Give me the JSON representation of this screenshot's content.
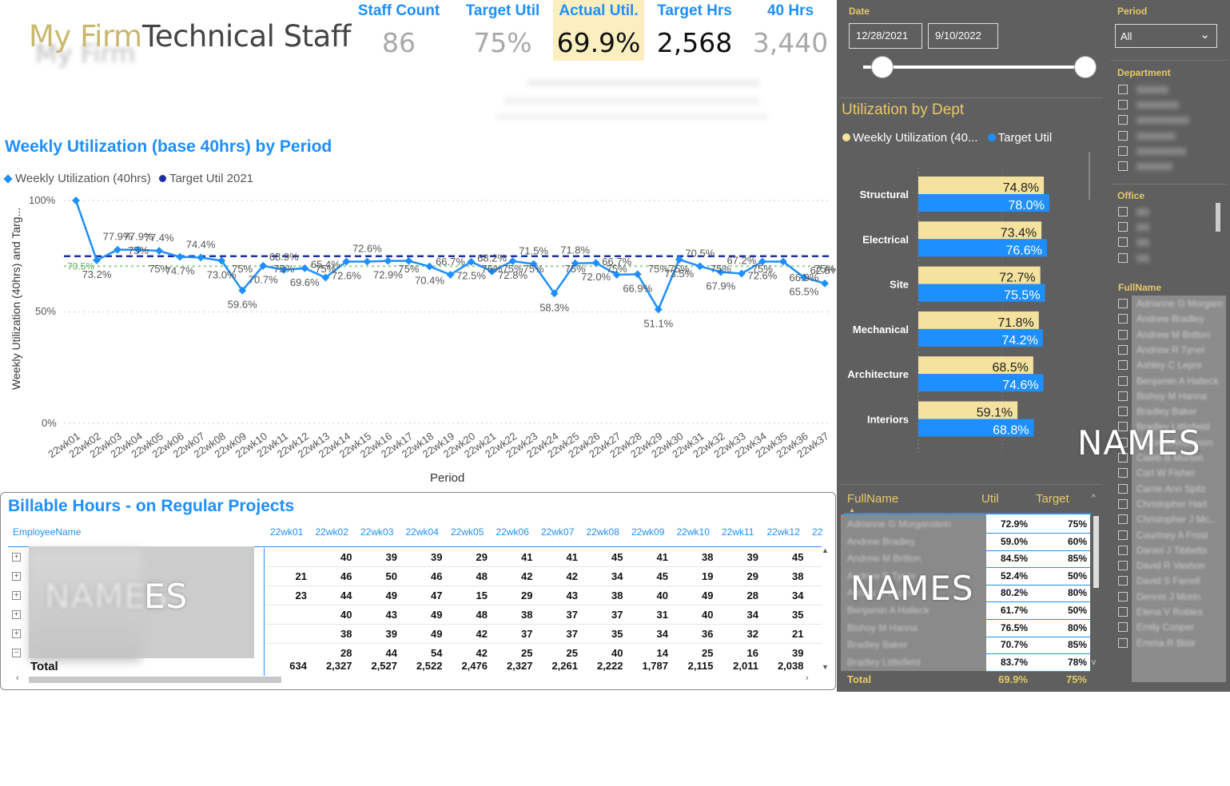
{
  "header": {
    "firm": "My Firm",
    "title": "Technical Staff"
  },
  "kpis": [
    {
      "label": "Staff Count",
      "value": "86"
    },
    {
      "label": "Target Util",
      "value": "75%"
    },
    {
      "label": "Actual Util.",
      "value": "69.9%"
    },
    {
      "label": "Target Hrs",
      "value": "2,568"
    },
    {
      "label": "40 Hrs",
      "value": "3,440"
    }
  ],
  "weekly_chart": {
    "title": "Weekly Utilization (base 40hrs) by Period",
    "legend": [
      "Weekly Utilization (40hrs)",
      "Target Util 2021"
    ],
    "ylabel": "Weekly Utilization (40hrs) and Targ...",
    "xlabel": "Period",
    "yticks": [
      "100%",
      "50%",
      "0%"
    ],
    "avg_label": "70.5%"
  },
  "chart_data": {
    "type": "line",
    "x": [
      "22wk01",
      "22wk02",
      "22wk03",
      "22wk04",
      "22wk05",
      "22wk06",
      "22wk07",
      "22wk08",
      "22wk09",
      "22wk10",
      "22wk11",
      "22wk12",
      "22wk13",
      "22wk14",
      "22wk15",
      "22wk16",
      "22wk17",
      "22wk18",
      "22wk19",
      "22wk20",
      "22wk21",
      "22wk22",
      "22wk23",
      "22wk24",
      "22wk25",
      "22wk26",
      "22wk27",
      "22wk28",
      "22wk29",
      "22wk30",
      "22wk31",
      "22wk32",
      "22wk33",
      "22wk34",
      "22wk35",
      "22wk36",
      "22wk37"
    ],
    "series": [
      {
        "name": "Weekly Utilization (40hrs)",
        "values": [
          100,
          73.2,
          77.9,
          77.9,
          77.4,
          74.7,
          74.4,
          73.0,
          59.6,
          70.7,
          68.9,
          69.6,
          65.4,
          72.6,
          72.6,
          72.9,
          72.9,
          70.4,
          66.7,
          72.5,
          68.2,
          72.8,
          71.5,
          58.3,
          71.8,
          72.0,
          66.7,
          66.9,
          51.1,
          73.5,
          70.5,
          67.9,
          67.2,
          72.6,
          72.6,
          65.5,
          62.8
        ],
        "labels": [
          "",
          "73.2%",
          "77.9%",
          "77.9%",
          "77.4%",
          "74.7%",
          "74.4%",
          "73.0%",
          "59.6%",
          "70.7%",
          "68.9%",
          "69.6%",
          "65.4%",
          "72.6%",
          "72.6%",
          "72.9%",
          "",
          "70.4%",
          "66.7%",
          "72.5%",
          "68.2%",
          "72.8%",
          "71.5%",
          "58.3%",
          "71.8%",
          "72.0%",
          "66.7%",
          "66.9%",
          "51.1%",
          "73.5%",
          "70.5%",
          "67.9%",
          "67.2%",
          "72.6%",
          "",
          "65.5%",
          "62.8%"
        ]
      },
      {
        "name": "Target Util 2021",
        "values": [
          75,
          75,
          75,
          75,
          75,
          75,
          75,
          75,
          75,
          75,
          75,
          75,
          75,
          75,
          75,
          75,
          75,
          75,
          75,
          75,
          75,
          75,
          75,
          75,
          75,
          75,
          75,
          75,
          75,
          75,
          75,
          75,
          75,
          75,
          75,
          75,
          75
        ],
        "labels": [
          "",
          "",
          "",
          "",
          "75%",
          "",
          "",
          "",
          "75%",
          "",
          "75%",
          "",
          "75%",
          "",
          "",
          "",
          "75%",
          "",
          "",
          "",
          "75%",
          "75%",
          "75%",
          "",
          "75%",
          "",
          "75%",
          "",
          "75%",
          "75%",
          "",
          "75%",
          "",
          "75%",
          "",
          "",
          "75%"
        ]
      }
    ],
    "extra_labels": [
      {
        "x_index": 35,
        "text": "66.9%"
      },
      {
        "x_index": 3,
        "text": "75%"
      }
    ],
    "ylim": [
      0,
      100
    ],
    "average": 70.5,
    "grid": true
  },
  "dept_chart": {
    "title": "Utilization by Dept",
    "legend": [
      "Weekly Utilization (40...",
      "Target Util"
    ],
    "depts": [
      {
        "name": "Structural",
        "util": 74.8,
        "target": 78.0,
        "util_label": "74.8%",
        "target_label": "78.0%"
      },
      {
        "name": "Electrical",
        "util": 73.4,
        "target": 76.6,
        "util_label": "73.4%",
        "target_label": "76.6%"
      },
      {
        "name": "Site",
        "util": 72.7,
        "target": 75.5,
        "util_label": "72.7%",
        "target_label": "75.5%"
      },
      {
        "name": "Mechanical",
        "util": 71.8,
        "target": 74.2,
        "util_label": "71.8%",
        "target_label": "74.2%"
      },
      {
        "name": "Architecture",
        "util": 68.5,
        "target": 74.6,
        "util_label": "68.5%",
        "target_label": "74.6%"
      },
      {
        "name": "Interiors",
        "util": 59.1,
        "target": 68.8,
        "util_label": "59.1%",
        "target_label": "68.8%"
      }
    ]
  },
  "date_filter": {
    "label": "Date",
    "start": "12/28/2021",
    "end": "9/10/2022"
  },
  "period_filter": {
    "label": "Period",
    "value": "All"
  },
  "department_label": "Department",
  "office_label": "Office",
  "fullname_label": "FullName",
  "names_overlay": "NAMES",
  "names_overlay_left": "ES",
  "employee_names": [
    "Adrianne G Morganstein",
    "Andrew Bradley",
    "Andrew M Britton",
    "Andrew R Tyner",
    "Ashley C Lepre",
    "Benjamin A Halleck",
    "Bishoy M Hanna",
    "Bradley Baker",
    "Bradley Littlefield",
    "Bruce A Anderson",
    "Caleb B Morton",
    "Carl W Fisher",
    "Carrie Ann Spitz",
    "Christopher Hart",
    "Christopher J Mc...",
    "Courtney A Frost",
    "Daniel J Tibbetts",
    "David R Vashon",
    "David S Farrell",
    "Dennis J Morin",
    "Elena V Robles",
    "Emily Cooper",
    "Emma R Blair"
  ],
  "util_table": {
    "headers": [
      "FullName",
      "Util",
      "Target"
    ],
    "rows": [
      {
        "util": "72.9%",
        "target": "75%"
      },
      {
        "util": "59.0%",
        "target": "60%"
      },
      {
        "util": "84.5%",
        "target": "85%"
      },
      {
        "util": "52.4%",
        "target": "50%"
      },
      {
        "util": "80.2%",
        "target": "80%"
      },
      {
        "util": "61.7%",
        "target": "50%"
      },
      {
        "util": "76.5%",
        "target": "80%"
      },
      {
        "util": "70.7%",
        "target": "85%"
      },
      {
        "util": "83.7%",
        "target": "78%"
      }
    ],
    "total": {
      "label": "Total",
      "util": "69.9%",
      "target": "75%"
    }
  },
  "billable": {
    "title": "Billable Hours - on Regular Projects",
    "col0": "EmployeeName",
    "weeks": [
      "22wk01",
      "22wk02",
      "22wk03",
      "22wk04",
      "22wk05",
      "22wk06",
      "22wk07",
      "22wk08",
      "22wk09",
      "22wk10",
      "22wk11",
      "22wk12",
      "22"
    ],
    "rows": [
      [
        "",
        "40",
        "39",
        "39",
        "29",
        "41",
        "41",
        "45",
        "41",
        "38",
        "39",
        "45"
      ],
      [
        "21",
        "46",
        "50",
        "46",
        "48",
        "42",
        "42",
        "34",
        "45",
        "19",
        "29",
        "38"
      ],
      [
        "23",
        "44",
        "49",
        "47",
        "15",
        "29",
        "43",
        "38",
        "40",
        "49",
        "28",
        "34"
      ],
      [
        "",
        "40",
        "43",
        "49",
        "48",
        "38",
        "37",
        "37",
        "31",
        "40",
        "34",
        "35"
      ],
      [
        "",
        "38",
        "39",
        "49",
        "42",
        "37",
        "37",
        "35",
        "34",
        "36",
        "32",
        "21"
      ],
      [
        "",
        "28",
        "44",
        "54",
        "42",
        "25",
        "25",
        "40",
        "14",
        "25",
        "16",
        "39"
      ]
    ],
    "total_label": "Total",
    "totals": [
      "634",
      "2,327",
      "2,527",
      "2,522",
      "2,476",
      "2,327",
      "2,261",
      "2,222",
      "1,787",
      "2,115",
      "2,011",
      "2,038"
    ]
  }
}
